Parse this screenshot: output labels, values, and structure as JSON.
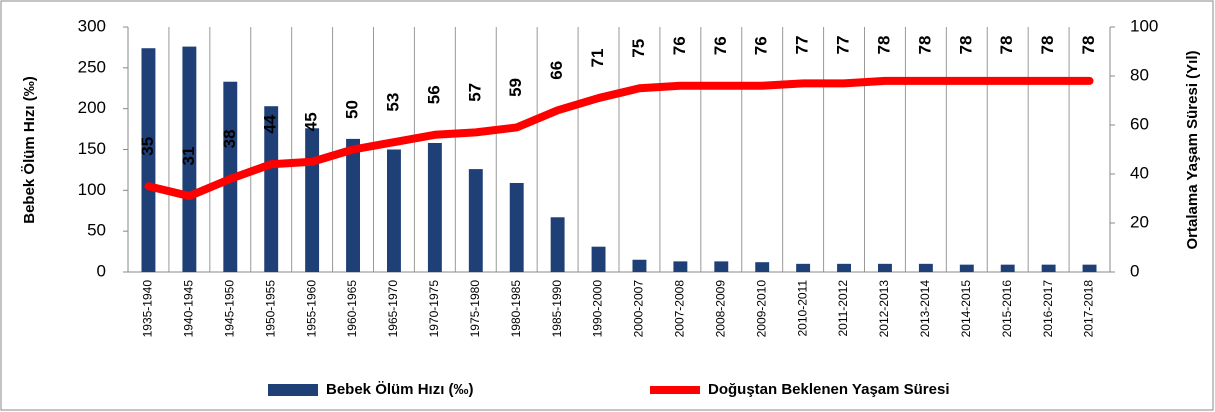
{
  "chart_data": {
    "type": "bar_line",
    "categories": [
      "1935-1940",
      "1940-1945",
      "1945-1950",
      "1950-1955",
      "1955-1960",
      "1960-1965",
      "1965-1970",
      "1970-1975",
      "1975-1980",
      "1980-1985",
      "1985-1990",
      "1990-2000",
      "2000-2007",
      "2007-2008",
      "2008-2009",
      "2009-2010",
      "2010-2011",
      "2011-2012",
      "2012-2013",
      "2013-2014",
      "2014-2015",
      "2015-2016",
      "2016-2017",
      "2017-2018"
    ],
    "series": [
      {
        "name": "Bebek Ölüm Hızı (‰)",
        "color": "#1f3f77",
        "type": "bar",
        "values": [
          274,
          276,
          233,
          203,
          176,
          163,
          150,
          158,
          126,
          109,
          67,
          31,
          15,
          13,
          13,
          12,
          10,
          10,
          10,
          10,
          9,
          9,
          9,
          9
        ]
      },
      {
        "name": "Doğuştan Beklenen Yaşam Süresi",
        "color": "#ff0000",
        "type": "line",
        "axis": "y2",
        "values": [
          35,
          31,
          38,
          44,
          45,
          50,
          53,
          56,
          57,
          59,
          66,
          71,
          75,
          76,
          76,
          76,
          77,
          77,
          78,
          78,
          78,
          78,
          78,
          78
        ]
      }
    ],
    "ylabel": "Bebek Ölüm Hızı  (‰)",
    "y2label": "Ortalama Yaşam Süresi (Yıl)",
    "ylim": [
      0,
      300
    ],
    "yticks": [
      0,
      50,
      100,
      150,
      200,
      250,
      300
    ],
    "y2lim": [
      0,
      100
    ],
    "y2ticks": [
      0,
      20,
      40,
      60,
      80,
      100
    ],
    "grid": true,
    "legend": "bottom"
  }
}
